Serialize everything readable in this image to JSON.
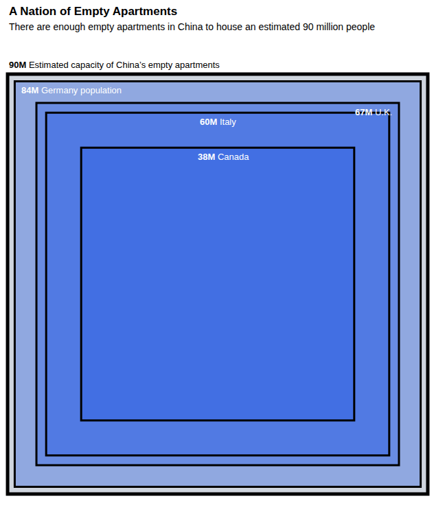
{
  "chart_data": {
    "type": "nested_squares",
    "title": "A Nation of Empty Apartments",
    "subtitle": "There are enough empty apartments in China to house an estimated 90 million people",
    "categories": [
      "Estimated capacity of China’s empty apartments",
      "Germany population",
      "U.K.",
      "Italy",
      "Canada"
    ],
    "values": [
      90,
      84,
      67,
      60,
      38
    ],
    "value_labels": [
      "90M",
      "84M",
      "67M",
      "60M",
      "38M"
    ],
    "color": "#2a5fe6",
    "tick_labels": false
  }
}
